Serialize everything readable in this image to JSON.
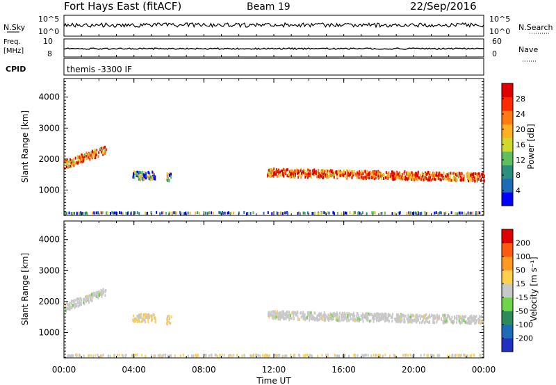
{
  "header": {
    "title": "Fort Hays East (fitACF)",
    "beam": "Beam 19",
    "date": "22/Sep/2016"
  },
  "panels": {
    "nsky": {
      "label": "N.Sky",
      "ticks": [
        "10^5",
        "10^0"
      ],
      "right_ticks": [
        "10^5",
        "10^0"
      ],
      "right_label": "N.Search"
    },
    "freq": {
      "label_line1": "Freq.",
      "label_line2": "[MHz]",
      "ticks": [
        "10",
        "8"
      ],
      "right_ticks": [
        "60",
        "0"
      ],
      "right_label": "Nave"
    },
    "cpid": {
      "label": "CPID",
      "text": "themis -3300 IF"
    }
  },
  "chart_data": [
    {
      "type": "scatter",
      "title": "",
      "xlabel": "Time UT",
      "ylabel": "Slant Range [km]",
      "x_ticks": [
        "00:00",
        "04:00",
        "08:00",
        "12:00",
        "16:00",
        "20:00",
        "00:00"
      ],
      "xlim": [
        0,
        24
      ],
      "y_ticks": [
        1000,
        2000,
        3000,
        4000
      ],
      "ylim": [
        180,
        4600
      ],
      "colorbar": {
        "label": "Power [dB]",
        "ticks": [
          "4",
          "8",
          "12",
          "16",
          "20",
          "24",
          "28"
        ],
        "range": [
          0,
          30
        ],
        "colors": [
          "#0000ff",
          "#1d6cb5",
          "#2c8e7c",
          "#5fbf5f",
          "#cfd92b",
          "#ffb020",
          "#ff7a10",
          "#ff2a00",
          "#e00000"
        ]
      },
      "series": [
        {
          "time_start": 0.0,
          "time_end": 2.4,
          "range_start": 1850,
          "range_end": 2350,
          "power": 22
        },
        {
          "time_start": 3.9,
          "time_end": 5.2,
          "range_start": 1500,
          "range_end": 1500,
          "power": 10
        },
        {
          "time_start": 5.8,
          "time_end": 6.1,
          "range_start": 1450,
          "range_end": 1450,
          "power": 10
        },
        {
          "time_start": 11.6,
          "time_end": 24.0,
          "range_start": 1600,
          "range_end": 1450,
          "power": 24
        },
        {
          "time_start": 0.0,
          "time_end": 24.0,
          "range_start": 300,
          "range_end": 300,
          "power": 8
        }
      ]
    },
    {
      "type": "scatter",
      "title": "",
      "xlabel": "Time UT",
      "ylabel": "Slant Range [km]",
      "x_ticks": [
        "00:00",
        "04:00",
        "08:00",
        "12:00",
        "16:00",
        "20:00",
        "00:00"
      ],
      "xlim": [
        0,
        24
      ],
      "y_ticks": [
        1000,
        2000,
        3000,
        4000
      ],
      "ylim": [
        180,
        4600
      ],
      "colorbar": {
        "label": "Velocity [m s⁻¹]",
        "ticks": [
          "200",
          "100",
          "50",
          "15",
          "-15",
          "-50",
          "-100",
          "-200"
        ],
        "range": [
          -250,
          250
        ],
        "colors": [
          "#2030c0",
          "#1d6cb5",
          "#2e8b57",
          "#6fd44a",
          "#c8c8c8",
          "#ffd050",
          "#ff9a20",
          "#ff5a10",
          "#e00000"
        ]
      },
      "series": [
        {
          "time_start": 0.0,
          "time_end": 2.4,
          "range_start": 1850,
          "range_end": 2350,
          "velocity": 0
        },
        {
          "time_start": 3.9,
          "time_end": 5.2,
          "range_start": 1500,
          "range_end": 1500,
          "velocity": 30
        },
        {
          "time_start": 5.8,
          "time_end": 6.1,
          "range_start": 1450,
          "range_end": 1450,
          "velocity": 30
        },
        {
          "time_start": 11.6,
          "time_end": 24.0,
          "range_start": 1600,
          "range_end": 1450,
          "velocity": 0
        },
        {
          "time_start": 0.0,
          "time_end": 24.0,
          "range_start": 300,
          "range_end": 300,
          "velocity": 20
        }
      ]
    }
  ],
  "colors": {
    "axes": "#000000",
    "trace": "#000000"
  }
}
